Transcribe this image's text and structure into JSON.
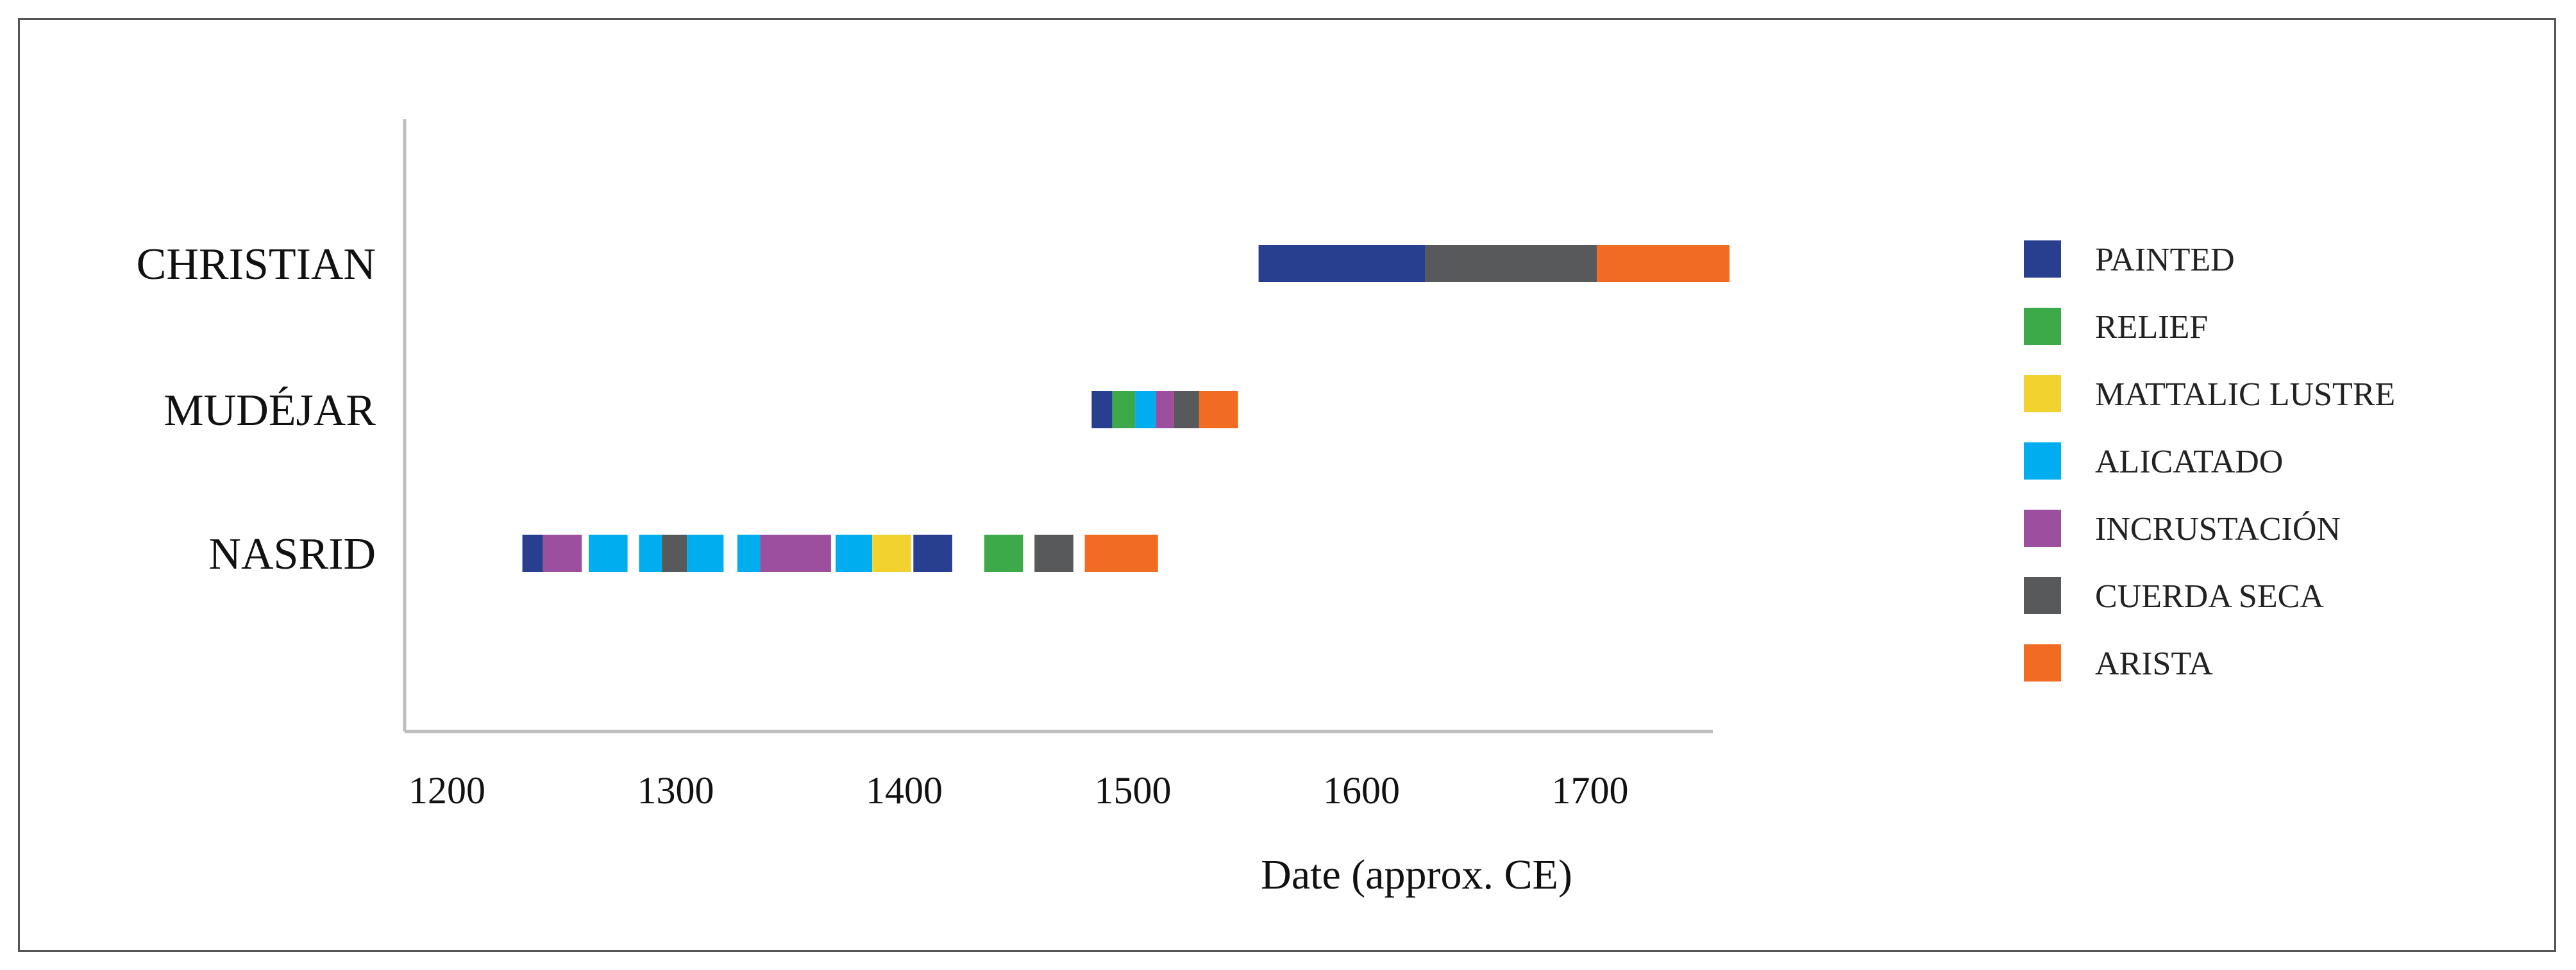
{
  "chart_data": {
    "type": "bar",
    "orientation": "horizontal-timeline",
    "categories": [
      "CHRISTIAN",
      "MUDÉJAR",
      "NASRID"
    ],
    "xlabel": "Date (approx. CE)",
    "xlim": [
      1180,
      1760
    ],
    "xticks": [
      "1200",
      "1300",
      "1400",
      "1500",
      "1600",
      "1700"
    ],
    "legend_position": "right",
    "series": [
      {
        "name": "PAINTED",
        "color": "#273F8E"
      },
      {
        "name": "RELIEF",
        "color": "#3CAA48"
      },
      {
        "name": "MATTALIC LUSTRE",
        "color": "#F2D22E"
      },
      {
        "name": "ALICATADO",
        "color": "#00AEEF"
      },
      {
        "name": "INCRUSTACIÓN",
        "color": "#9B4F9E"
      },
      {
        "name": "CUERDA SECA",
        "color": "#58595B"
      },
      {
        "name": "ARISTA",
        "color": "#F26B23"
      }
    ],
    "segments": [
      {
        "category": "CHRISTIAN",
        "series": "PAINTED",
        "start": 1555,
        "end": 1628
      },
      {
        "category": "CHRISTIAN",
        "series": "CUERDA SECA",
        "start": 1628,
        "end": 1703
      },
      {
        "category": "CHRISTIAN",
        "series": "ARISTA",
        "start": 1703,
        "end": 1761
      },
      {
        "category": "MUDÉJAR",
        "series": "PAINTED",
        "start": 1482,
        "end": 1491
      },
      {
        "category": "MUDÉJAR",
        "series": "RELIEF",
        "start": 1491,
        "end": 1501
      },
      {
        "category": "MUDÉJAR",
        "series": "ALICATADO",
        "start": 1501,
        "end": 1510
      },
      {
        "category": "MUDÉJAR",
        "series": "INCRUSTACIÓN",
        "start": 1510,
        "end": 1518
      },
      {
        "category": "MUDÉJAR",
        "series": "CUERDA SECA",
        "start": 1518,
        "end": 1529
      },
      {
        "category": "MUDÉJAR",
        "series": "ARISTA",
        "start": 1529,
        "end": 1546
      },
      {
        "category": "NASRID",
        "series": "PAINTED",
        "start": 1233,
        "end": 1242
      },
      {
        "category": "NASRID",
        "series": "INCRUSTACIÓN",
        "start": 1242,
        "end": 1259
      },
      {
        "category": "NASRID",
        "series": "ALICATADO",
        "start": 1262,
        "end": 1279
      },
      {
        "category": "NASRID",
        "series": "ALICATADO",
        "start": 1284,
        "end": 1294
      },
      {
        "category": "NASRID",
        "series": "CUERDA SECA",
        "start": 1294,
        "end": 1305
      },
      {
        "category": "NASRID",
        "series": "ALICATADO",
        "start": 1305,
        "end": 1321
      },
      {
        "category": "NASRID",
        "series": "ALICATADO",
        "start": 1327,
        "end": 1337
      },
      {
        "category": "NASRID",
        "series": "INCRUSTACIÓN",
        "start": 1337,
        "end": 1368
      },
      {
        "category": "NASRID",
        "series": "ALICATADO",
        "start": 1370,
        "end": 1386
      },
      {
        "category": "NASRID",
        "series": "MATTALIC LUSTRE",
        "start": 1386,
        "end": 1403
      },
      {
        "category": "NASRID",
        "series": "PAINTED",
        "start": 1404,
        "end": 1421
      },
      {
        "category": "NASRID",
        "series": "RELIEF",
        "start": 1435,
        "end": 1452
      },
      {
        "category": "NASRID",
        "series": "CUERDA SECA",
        "start": 1457,
        "end": 1474
      },
      {
        "category": "NASRID",
        "series": "ARISTA",
        "start": 1479,
        "end": 1511
      }
    ]
  }
}
